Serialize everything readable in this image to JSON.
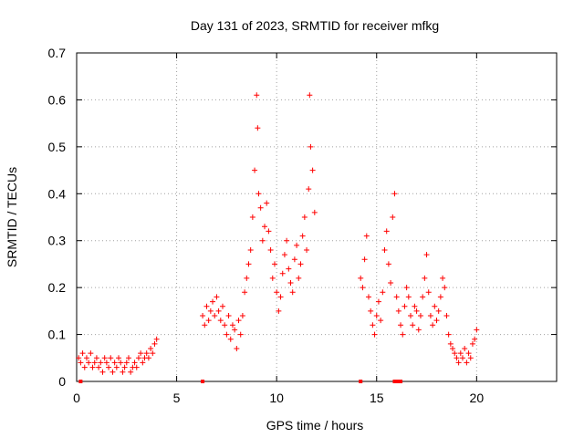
{
  "chart_data": {
    "type": "scatter",
    "title": "Day 131 of 2023, SRMTID for receiver mfkg",
    "xlabel": "GPS time / hours",
    "ylabel": "SRMTID / TECUs",
    "xlim": [
      0,
      24
    ],
    "ylim": [
      0,
      0.7
    ],
    "xticks": [
      0,
      5,
      10,
      15,
      20
    ],
    "xtick_labels": [
      "0",
      "5",
      "10",
      "15",
      "20"
    ],
    "yticks": [
      0,
      0.1,
      0.2,
      0.3,
      0.4,
      0.5,
      0.6,
      0.7
    ],
    "ytick_labels": [
      "0",
      "0.1",
      "0.2",
      "0.3",
      "0.4",
      "0.5",
      "0.6",
      "0.7"
    ],
    "grid": true,
    "marker": "plus",
    "color": "#ff0000",
    "series": [
      {
        "name": "SRMTID",
        "x": [
          0.1,
          0.2,
          0.3,
          0.4,
          0.5,
          0.6,
          0.7,
          0.8,
          0.9,
          1.0,
          1.1,
          1.2,
          1.3,
          1.4,
          1.5,
          1.6,
          1.7,
          1.8,
          1.9,
          2.0,
          2.1,
          2.2,
          2.3,
          2.4,
          2.5,
          2.6,
          2.7,
          2.8,
          2.9,
          3.0,
          3.1,
          3.2,
          3.3,
          3.4,
          3.5,
          3.6,
          3.7,
          3.8,
          3.9,
          4.0,
          6.3,
          6.4,
          6.5,
          6.6,
          6.7,
          6.8,
          6.9,
          7.0,
          7.1,
          7.2,
          7.3,
          7.4,
          7.5,
          7.6,
          7.7,
          7.8,
          7.9,
          8.0,
          8.1,
          8.2,
          8.3,
          8.4,
          8.5,
          8.6,
          8.7,
          8.8,
          8.9,
          9.0,
          9.05,
          9.1,
          9.2,
          9.3,
          9.4,
          9.5,
          9.6,
          9.7,
          9.8,
          9.9,
          10.0,
          10.1,
          10.2,
          10.3,
          10.4,
          10.5,
          10.6,
          10.7,
          10.8,
          10.9,
          11.0,
          11.1,
          11.2,
          11.3,
          11.4,
          11.5,
          11.6,
          11.65,
          11.7,
          11.8,
          11.9,
          14.2,
          14.3,
          14.4,
          14.5,
          14.6,
          14.7,
          14.8,
          14.9,
          15.0,
          15.1,
          15.2,
          15.3,
          15.4,
          15.5,
          15.6,
          15.7,
          15.8,
          15.9,
          16.0,
          16.1,
          16.2,
          16.3,
          16.4,
          16.5,
          16.6,
          16.7,
          16.8,
          16.9,
          17.0,
          17.1,
          17.2,
          17.3,
          17.4,
          17.5,
          17.6,
          17.7,
          17.8,
          17.9,
          18.0,
          18.1,
          18.2,
          18.3,
          18.4,
          18.5,
          18.6,
          18.7,
          18.8,
          18.9,
          19.0,
          19.1,
          19.2,
          19.3,
          19.4,
          19.5,
          19.6,
          19.7,
          19.8,
          19.9,
          20.0
        ],
        "y": [
          0.05,
          0.04,
          0.06,
          0.03,
          0.05,
          0.04,
          0.06,
          0.03,
          0.04,
          0.05,
          0.03,
          0.04,
          0.02,
          0.05,
          0.04,
          0.03,
          0.05,
          0.02,
          0.04,
          0.03,
          0.05,
          0.04,
          0.02,
          0.03,
          0.04,
          0.05,
          0.02,
          0.03,
          0.04,
          0.03,
          0.05,
          0.06,
          0.04,
          0.05,
          0.06,
          0.05,
          0.07,
          0.06,
          0.08,
          0.09,
          0.14,
          0.12,
          0.16,
          0.13,
          0.15,
          0.17,
          0.14,
          0.18,
          0.15,
          0.13,
          0.16,
          0.12,
          0.1,
          0.14,
          0.09,
          0.12,
          0.11,
          0.07,
          0.13,
          0.1,
          0.14,
          0.19,
          0.22,
          0.25,
          0.28,
          0.35,
          0.45,
          0.61,
          0.54,
          0.4,
          0.37,
          0.3,
          0.33,
          0.38,
          0.32,
          0.28,
          0.22,
          0.25,
          0.19,
          0.15,
          0.18,
          0.23,
          0.27,
          0.3,
          0.24,
          0.21,
          0.19,
          0.26,
          0.29,
          0.22,
          0.25,
          0.31,
          0.35,
          0.28,
          0.41,
          0.61,
          0.5,
          0.45,
          0.36,
          0.22,
          0.2,
          0.26,
          0.31,
          0.18,
          0.15,
          0.12,
          0.1,
          0.14,
          0.17,
          0.13,
          0.19,
          0.28,
          0.32,
          0.25,
          0.21,
          0.35,
          0.4,
          0.18,
          0.15,
          0.12,
          0.1,
          0.16,
          0.2,
          0.18,
          0.14,
          0.12,
          0.16,
          0.15,
          0.11,
          0.14,
          0.18,
          0.22,
          0.27,
          0.19,
          0.14,
          0.12,
          0.16,
          0.13,
          0.15,
          0.18,
          0.22,
          0.2,
          0.14,
          0.1,
          0.08,
          0.07,
          0.06,
          0.05,
          0.04,
          0.06,
          0.05,
          0.07,
          0.04,
          0.06,
          0.05,
          0.08,
          0.09,
          0.11
        ]
      }
    ],
    "gap_markers_x": [
      0.2,
      6.3,
      14.2,
      15.9,
      16.0,
      16.1,
      16.2
    ]
  }
}
